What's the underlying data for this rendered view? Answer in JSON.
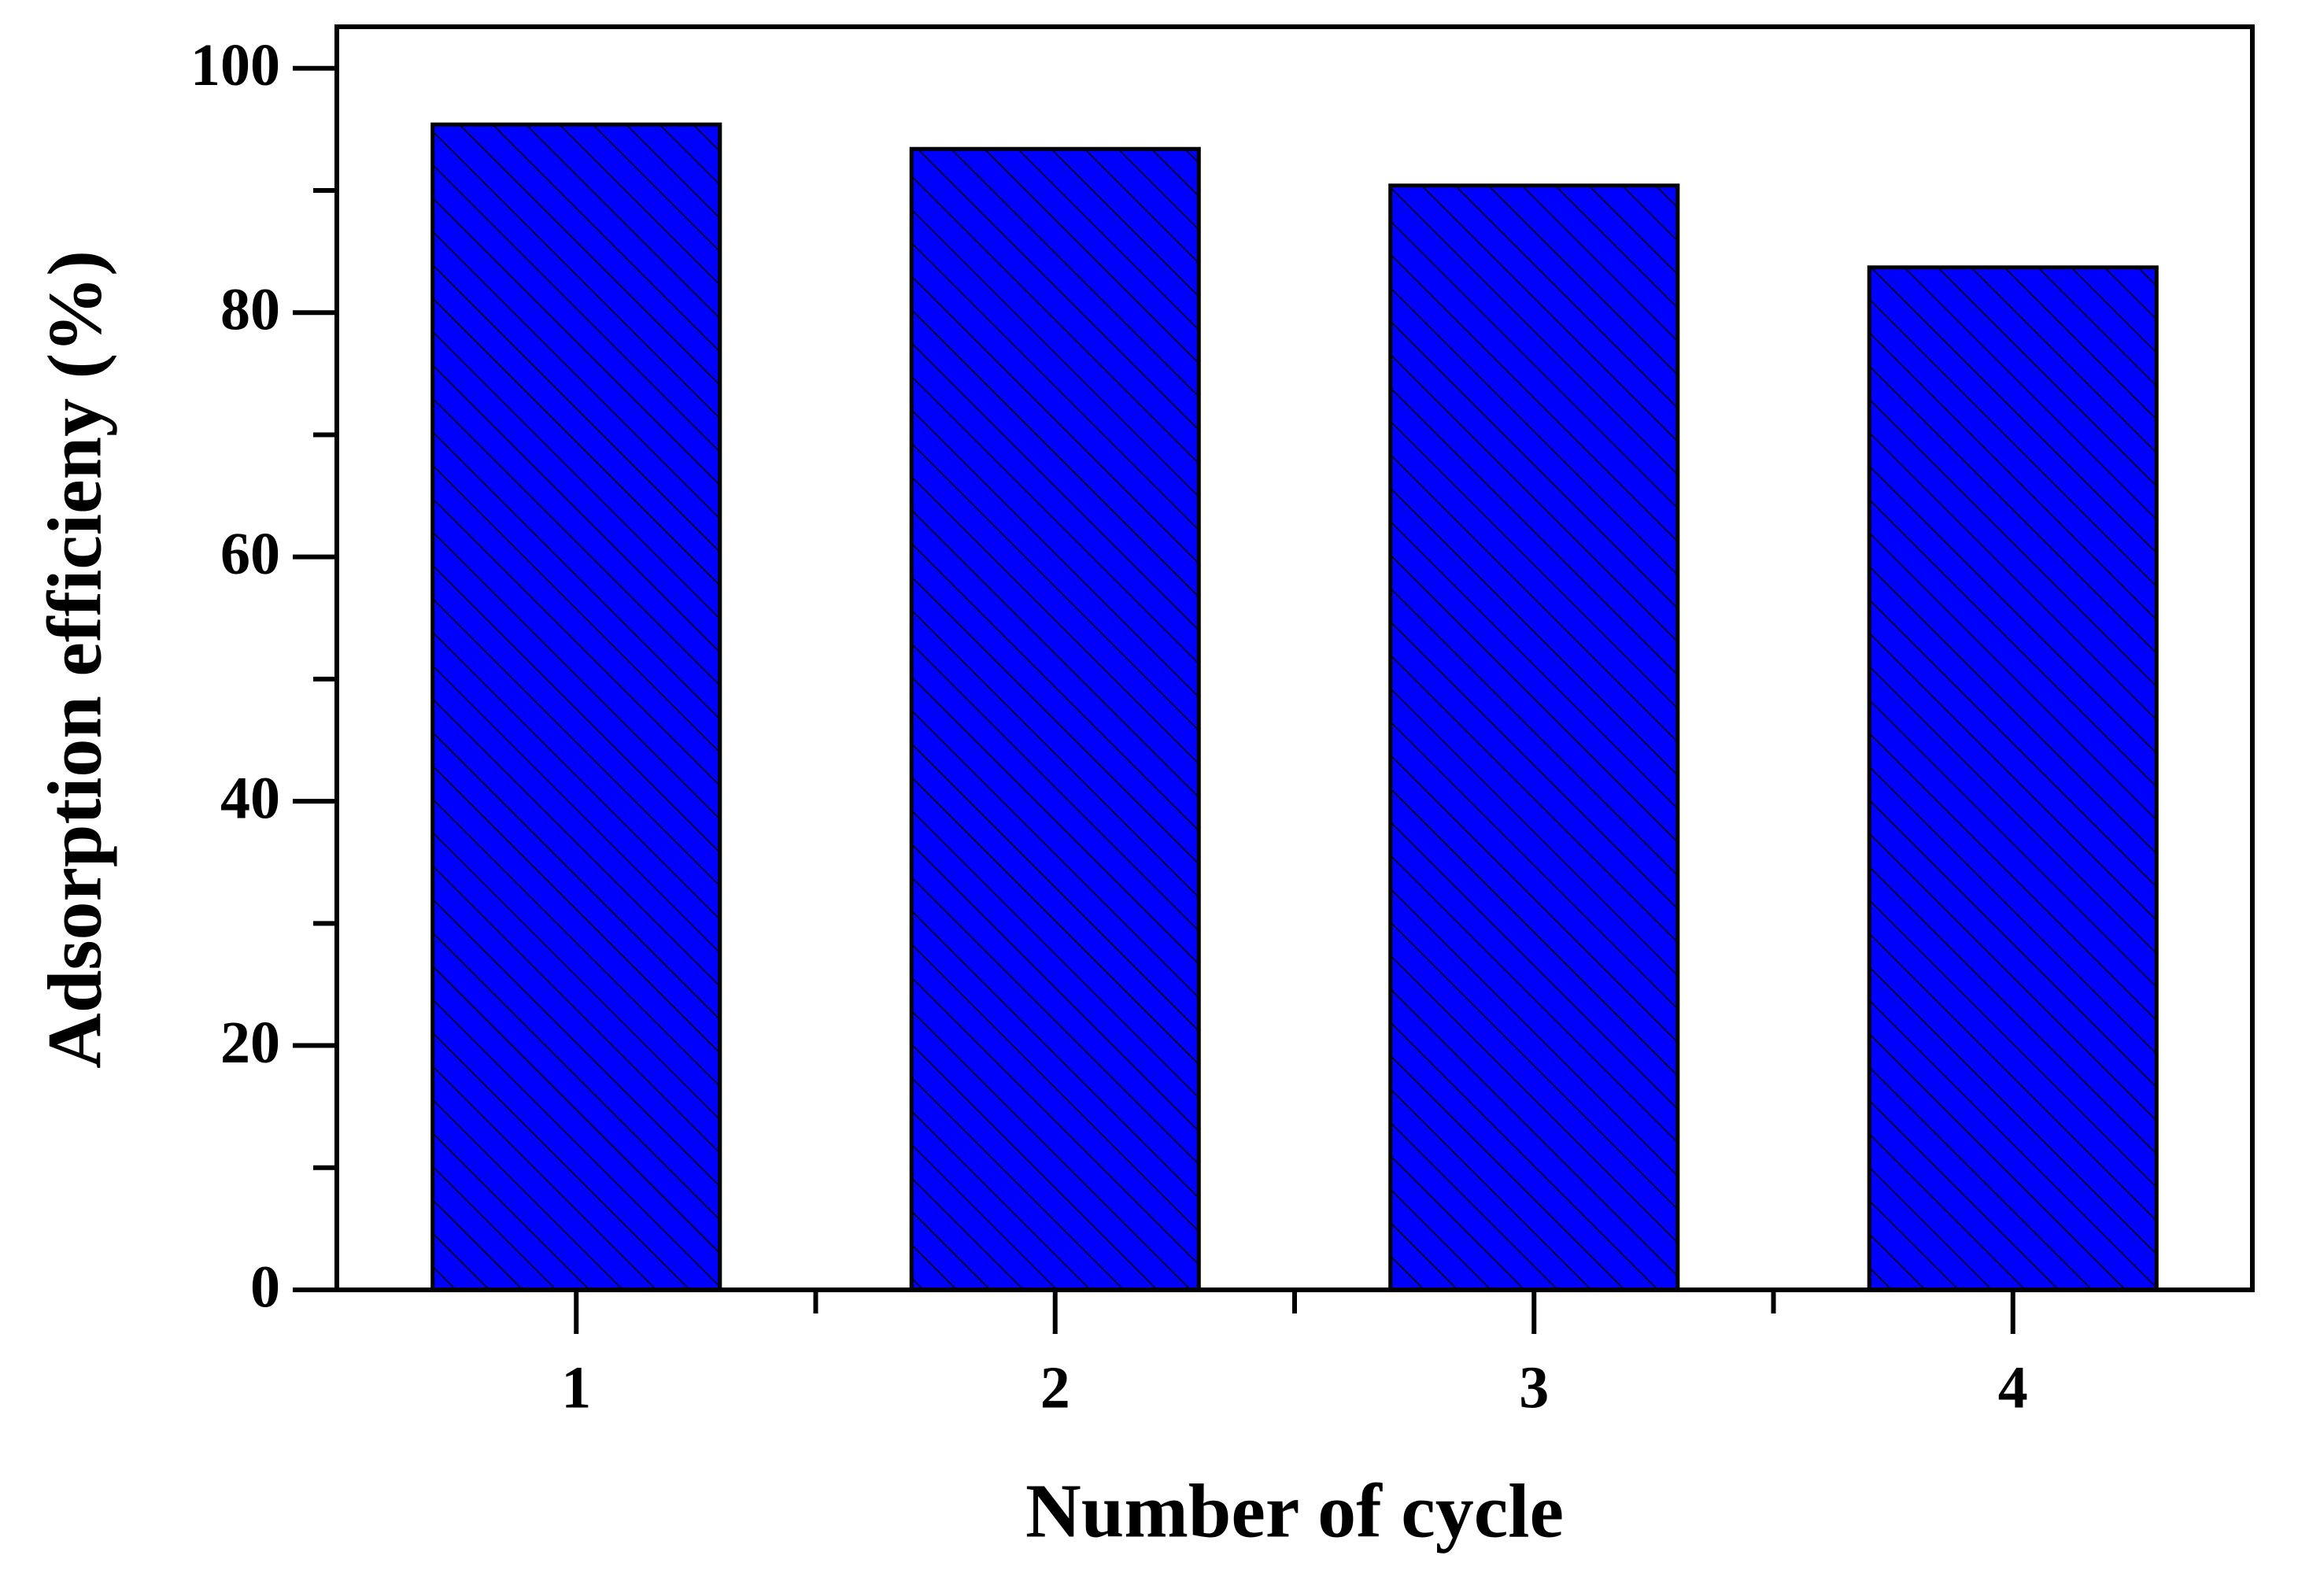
{
  "chart_data": {
    "type": "bar",
    "xlabel": "Number of cycle",
    "ylabel": "Adsorption efficieny (%)",
    "categories": [
      "1",
      "2",
      "3",
      "4"
    ],
    "values": [
      95.4,
      93.4,
      90.4,
      83.7
    ],
    "color": "#0000ff",
    "ylim": [
      0,
      103.4
    ],
    "yticks": [
      0,
      20,
      40,
      60,
      80,
      100
    ],
    "grid": false
  }
}
